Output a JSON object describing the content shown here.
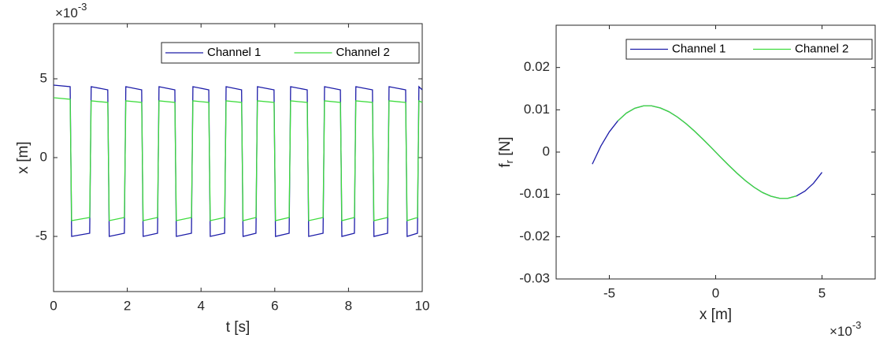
{
  "chart_data": [
    {
      "type": "line",
      "xlabel": "t [s]",
      "ylabel": "x [m]",
      "y_exponent": {
        "base": "×10",
        "exp": "-3"
      },
      "xlim": [
        0,
        10
      ],
      "xticks": [
        0,
        2,
        4,
        6,
        8,
        10
      ],
      "ylim": [
        -0.0085,
        0.0085
      ],
      "yticks": [
        {
          "value": -0.005,
          "label": "-5"
        },
        0,
        {
          "value": 0.005,
          "label": "5"
        }
      ],
      "legend": "top-right",
      "x": [
        0,
        0.45,
        0.49,
        0.98,
        1.02,
        1.47,
        1.51,
        1.92,
        1.96,
        2.39,
        2.43,
        2.82,
        2.86,
        3.29,
        3.33,
        3.74,
        3.78,
        4.21,
        4.25,
        4.64,
        4.68,
        5.1,
        5.14,
        5.49,
        5.53,
        5.98,
        6.02,
        6.39,
        6.43,
        6.88,
        6.92,
        7.31,
        7.35,
        7.78,
        7.82,
        8.16,
        8.2,
        8.65,
        8.69,
        9.06,
        9.1,
        9.55,
        9.59,
        9.87,
        9.91,
        10
      ],
      "series": [
        {
          "name": "Channel 1",
          "color": "#1c1ca8",
          "values": [
            0.0046,
            0.0045,
            -0.005,
            -0.0048,
            0.0045,
            0.0043,
            -0.005,
            -0.0048,
            0.0045,
            0.0043,
            -0.005,
            -0.0048,
            0.0045,
            0.0043,
            -0.005,
            -0.0048,
            0.0045,
            0.0043,
            -0.005,
            -0.0048,
            0.0045,
            0.0043,
            -0.005,
            -0.0048,
            0.0045,
            0.0043,
            -0.005,
            -0.0048,
            0.0045,
            0.0043,
            -0.005,
            -0.0048,
            0.0045,
            0.0043,
            -0.005,
            -0.0048,
            0.0045,
            0.0043,
            -0.005,
            -0.0048,
            0.0045,
            0.0043,
            -0.005,
            -0.0048,
            0.0045,
            0.0043
          ]
        },
        {
          "name": "Channel 2",
          "color": "#3ddc3d",
          "values": [
            0.0038,
            0.0037,
            -0.004,
            -0.0038,
            0.0036,
            0.0035,
            -0.004,
            -0.0038,
            0.0036,
            0.0035,
            -0.004,
            -0.0038,
            0.0036,
            0.0035,
            -0.004,
            -0.0038,
            0.0036,
            0.0035,
            -0.004,
            -0.0038,
            0.0036,
            0.0035,
            -0.004,
            -0.0038,
            0.0036,
            0.0035,
            -0.004,
            -0.0038,
            0.0036,
            0.0035,
            -0.004,
            -0.0038,
            0.0036,
            0.0035,
            -0.004,
            -0.0038,
            0.0036,
            0.0035,
            -0.004,
            -0.0038,
            0.0036,
            0.0035,
            -0.004,
            -0.0038,
            0.0036,
            0.0035
          ]
        }
      ]
    },
    {
      "type": "line",
      "xlabel": "x [m]",
      "ylabel": "f",
      "ylabel_sub": "r",
      "ylabel_unit": "[N]",
      "x_exponent": {
        "base": "×10",
        "exp": "-3"
      },
      "xlim": [
        -0.0075,
        0.0075
      ],
      "xticks": [
        {
          "value": -0.005,
          "label": "-5"
        },
        0,
        {
          "value": 0.005,
          "label": "5"
        }
      ],
      "ylim": [
        -0.03,
        0.03
      ],
      "yticks": [
        -0.03,
        -0.02,
        -0.01,
        0,
        0.01,
        0.02
      ],
      "legend": "top-right",
      "series": [
        {
          "name": "Channel 1",
          "color": "#1c1ca8",
          "x": [
            -0.0058,
            -0.0054,
            -0.005,
            -0.0046,
            -0.0042,
            -0.0038,
            -0.0034,
            -0.003,
            -0.0026,
            -0.0022,
            -0.0018,
            -0.0014,
            -0.001,
            -0.0006,
            -0.0002,
            0.0002,
            0.0006,
            0.001,
            0.0014,
            0.0018,
            0.0022,
            0.0026,
            0.003,
            0.0034,
            0.0038,
            0.0042,
            0.0046,
            0.005
          ],
          "values": [
            -0.00284,
            0.00141,
            0.00479,
            0.00737,
            0.00921,
            0.01037,
            0.01092,
            0.01092,
            0.01044,
            0.00955,
            0.00829,
            0.00675,
            0.00498,
            0.00305,
            0.00103,
            -0.00103,
            -0.00305,
            -0.00498,
            -0.00675,
            -0.00829,
            -0.00955,
            -0.01044,
            -0.01092,
            -0.01092,
            -0.01037,
            -0.00921,
            -0.00737,
            -0.00479
          ]
        },
        {
          "name": "Channel 2",
          "color": "#3ddc3d",
          "x": [
            -0.0046,
            -0.0042,
            -0.0038,
            -0.0034,
            -0.003,
            -0.0026,
            -0.0022,
            -0.0018,
            -0.0014,
            -0.001,
            -0.0006,
            -0.0002,
            0.0002,
            0.0006,
            0.001,
            0.0014,
            0.0018,
            0.0022,
            0.0026,
            0.003,
            0.0034,
            0.0038
          ],
          "values": [
            0.00737,
            0.00921,
            0.01037,
            0.01092,
            0.01092,
            0.01044,
            0.00955,
            0.00829,
            0.00675,
            0.00498,
            0.00305,
            0.00103,
            -0.00103,
            -0.00305,
            -0.00498,
            -0.00675,
            -0.00829,
            -0.00955,
            -0.01044,
            -0.01092,
            -0.01092,
            -0.01037
          ]
        }
      ]
    }
  ]
}
